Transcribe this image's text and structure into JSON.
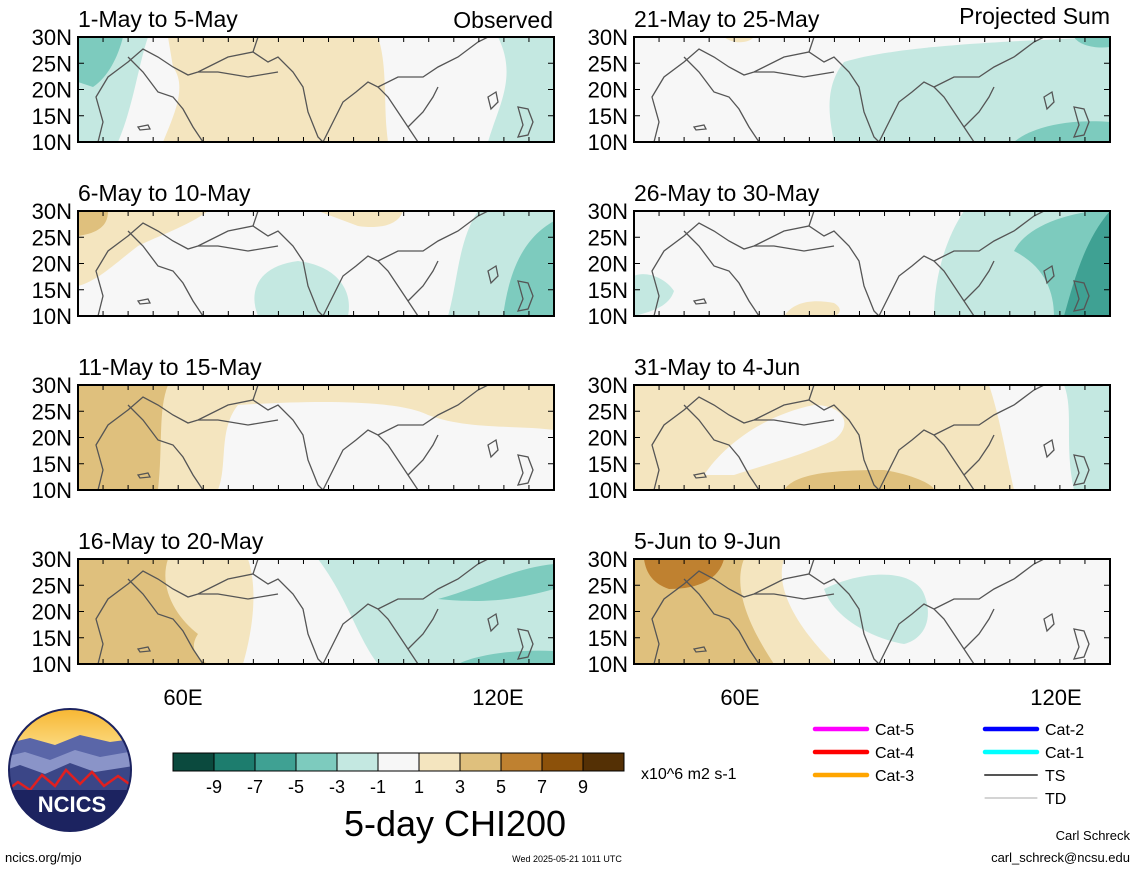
{
  "sources": {
    "left": "Observed",
    "right": "Projected Sum"
  },
  "panels": [
    {
      "title": "1-May to 5-May",
      "col": 0,
      "row": 0
    },
    {
      "title": "6-May to 10-May",
      "col": 0,
      "row": 1
    },
    {
      "title": "11-May to 15-May",
      "col": 0,
      "row": 2
    },
    {
      "title": "16-May to 20-May",
      "col": 0,
      "row": 3
    },
    {
      "title": "21-May to 25-May",
      "col": 1,
      "row": 0
    },
    {
      "title": "26-May to 30-May",
      "col": 1,
      "row": 1
    },
    {
      "title": "31-May to 4-Jun",
      "col": 1,
      "row": 2
    },
    {
      "title": "5-Jun to 9-Jun",
      "col": 1,
      "row": 3
    }
  ],
  "lat_labels": [
    "30N",
    "25N",
    "20N",
    "15N",
    "10N"
  ],
  "lon_labels": [
    "60E",
    "120E"
  ],
  "colorbar": {
    "colors": [
      "#0b4a3e",
      "#1d7d6e",
      "#3fa193",
      "#7dcbbe",
      "#c4e8e1",
      "#f7f7f7",
      "#f4e5bf",
      "#dfc07d",
      "#bf8130",
      "#8c510a",
      "#543005"
    ],
    "ticks": [
      "-9",
      "-7",
      "-5",
      "-3",
      "-1",
      "1",
      "3",
      "5",
      "7",
      "9"
    ],
    "units": "x10^6 m2 s-1"
  },
  "main_title": "5-day CHI200",
  "track_legend": [
    {
      "label": "Cat-5",
      "color": "#ff00ff"
    },
    {
      "label": "Cat-4",
      "color": "#ff0000"
    },
    {
      "label": "Cat-3",
      "color": "#ffa500"
    },
    {
      "label": "Cat-2",
      "color": "#0000ff"
    },
    {
      "label": "Cat-1",
      "color": "#00ffff"
    },
    {
      "label": "TS",
      "color": "#555555"
    },
    {
      "label": "TD",
      "color": "#aaaaaa"
    }
  ],
  "logo": {
    "text": "NCICS"
  },
  "footer": {
    "url": "ncics.org/mjo",
    "timestamp": "Wed 2025-05-21 1011 UTC",
    "author": "Carl Schreck",
    "email": "carl_schreck@ncsu.edu"
  }
}
